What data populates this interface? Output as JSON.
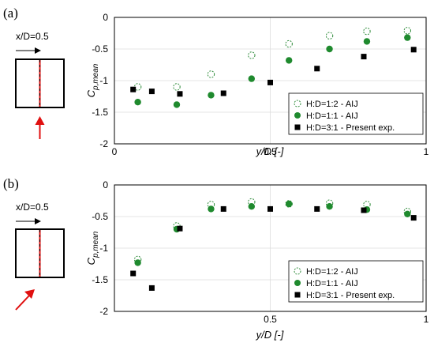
{
  "colors": {
    "hollow_series": "#2e8b3a",
    "filled_series": "#1f8a2e",
    "exp_series": "#000000",
    "arrow": "#e01010",
    "section_line": "#e01010",
    "grid": "#dddddd"
  },
  "panels": [
    {
      "panel_label": "(a)",
      "diagram": {
        "dimension_label": "x/D=0.5",
        "wind_direction": "normal"
      }
    },
    {
      "panel_label": "(b)",
      "diagram": {
        "dimension_label": "x/D=0.5",
        "wind_direction": "oblique"
      }
    }
  ],
  "chart_data": [
    {
      "type": "scatter",
      "xlabel": "y/D [-]",
      "ylabel": "C_p,mean",
      "xlim": [
        0,
        1
      ],
      "ylim": [
        -2,
        0
      ],
      "x_ticks": [
        "0",
        "0.5",
        "1"
      ],
      "y_ticks": [
        "0",
        "-0.5",
        "-1",
        "-1.5",
        "-2"
      ],
      "grid": true,
      "legend_position": "bottom-right",
      "series": [
        {
          "name": "H:D=1:2 - AIJ",
          "marker": "open-circle",
          "x": [
            0.075,
            0.2,
            0.31,
            0.44,
            0.56,
            0.69,
            0.81,
            0.94
          ],
          "y": [
            -1.1,
            -1.1,
            -0.9,
            -0.6,
            -0.42,
            -0.29,
            -0.22,
            -0.21
          ]
        },
        {
          "name": "H:D=1:1 - AIJ",
          "marker": "filled-circle",
          "x": [
            0.075,
            0.2,
            0.31,
            0.44,
            0.56,
            0.69,
            0.81,
            0.94
          ],
          "y": [
            -1.34,
            -1.38,
            -1.23,
            -0.97,
            -0.68,
            -0.5,
            -0.38,
            -0.32
          ]
        },
        {
          "name": "H:D=3:1 - Present exp.",
          "marker": "filled-square",
          "x": [
            0.06,
            0.12,
            0.21,
            0.35,
            0.5,
            0.65,
            0.8,
            0.96
          ],
          "y": [
            -1.14,
            -1.17,
            -1.21,
            -1.2,
            -1.03,
            -0.81,
            -0.62,
            -0.51
          ]
        }
      ]
    },
    {
      "type": "scatter",
      "xlabel": "y/D [-]",
      "ylabel": "C_p,mean",
      "xlim": [
        0,
        1
      ],
      "ylim": [
        -2,
        0
      ],
      "x_ticks": [
        "0.5",
        "1"
      ],
      "y_ticks": [
        "0",
        "-0.5",
        "-1",
        "-1.5",
        "-2"
      ],
      "grid": true,
      "legend_position": "bottom-right",
      "series": [
        {
          "name": "H:D=1:2 - AIJ",
          "marker": "open-circle",
          "x": [
            0.075,
            0.2,
            0.31,
            0.44,
            0.56,
            0.69,
            0.81,
            0.94
          ],
          "y": [
            -1.18,
            -0.65,
            -0.31,
            -0.27,
            -0.3,
            -0.29,
            -0.31,
            -0.42
          ]
        },
        {
          "name": "H:D=1:1 - AIJ",
          "marker": "filled-circle",
          "x": [
            0.075,
            0.2,
            0.31,
            0.44,
            0.56,
            0.69,
            0.81,
            0.94
          ],
          "y": [
            -1.23,
            -0.7,
            -0.38,
            -0.34,
            -0.3,
            -0.34,
            -0.39,
            -0.46
          ]
        },
        {
          "name": "H:D=3:1 - Present exp.",
          "marker": "filled-square",
          "x": [
            0.06,
            0.12,
            0.21,
            0.35,
            0.5,
            0.65,
            0.8,
            0.96
          ],
          "y": [
            -1.4,
            -1.63,
            -0.69,
            -0.38,
            -0.38,
            -0.38,
            -0.4,
            -0.52
          ]
        }
      ]
    }
  ]
}
